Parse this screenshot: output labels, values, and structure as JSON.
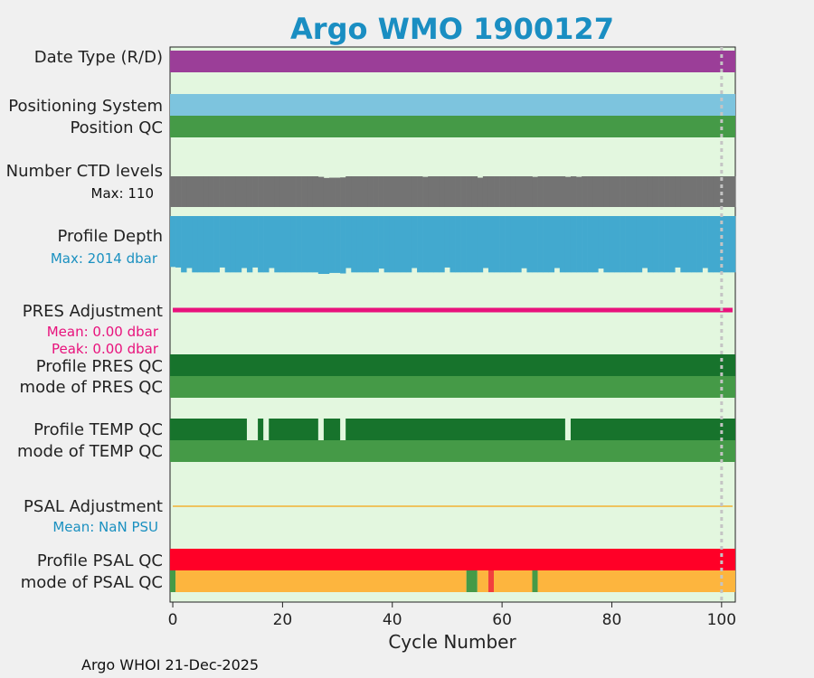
{
  "title": "Argo WMO 1900127",
  "footer": "Argo WHOI 21-Dec-2025",
  "chart_data": {
    "type": "bar",
    "title": "Argo WMO 1900127",
    "xlabel": "Cycle Number",
    "xlim": [
      -0.5,
      102.5
    ],
    "xticks": [
      0,
      20,
      40,
      60,
      80,
      100
    ],
    "reference_line_cycle": 100,
    "rows": [
      {
        "name": "date-type-row",
        "label": "Date Type (R/D)",
        "segments": [
          {
            "from": -0.5,
            "to": 102.5,
            "color": "#9b3e98"
          }
        ]
      },
      {
        "name": "positioning-system-row",
        "label": "Positioning System",
        "segments": [
          {
            "from": -0.5,
            "to": 102.5,
            "color": "#7dc4de"
          }
        ]
      },
      {
        "name": "position-qc-row",
        "label": "Position QC",
        "segments": [
          {
            "from": -0.5,
            "to": 102.5,
            "color": "#459a47"
          }
        ]
      },
      {
        "name": "pres-profile-qc-row",
        "label": "Profile PRES QC",
        "segments": [
          {
            "from": -0.5,
            "to": 102.5,
            "color": "#17732c"
          }
        ]
      },
      {
        "name": "pres-mode-qc-row",
        "label": "mode of PRES QC",
        "segments": [
          {
            "from": -0.5,
            "to": 102.5,
            "color": "#459a47"
          }
        ]
      },
      {
        "name": "temp-profile-qc-row",
        "label": "Profile TEMP QC",
        "segments": [
          {
            "from": -0.5,
            "to": 13.5,
            "color": "#17732c"
          },
          {
            "from": 15.5,
            "to": 16.5,
            "color": "#17732c"
          },
          {
            "from": 17.5,
            "to": 26.5,
            "color": "#17732c"
          },
          {
            "from": 27.5,
            "to": 30.5,
            "color": "#17732c"
          },
          {
            "from": 31.5,
            "to": 71.5,
            "color": "#17732c"
          },
          {
            "from": 72.5,
            "to": 102.5,
            "color": "#17732c"
          }
        ]
      },
      {
        "name": "temp-mode-qc-row",
        "label": "mode of TEMP QC",
        "segments": [
          {
            "from": -0.5,
            "to": 102.5,
            "color": "#459a47"
          }
        ]
      },
      {
        "name": "psal-profile-qc-row",
        "label": "Profile PSAL QC",
        "segments": [
          {
            "from": -0.5,
            "to": 102.5,
            "color": "#ff0027"
          }
        ]
      },
      {
        "name": "psal-mode-qc-row",
        "label": "mode of PSAL QC",
        "segments": [
          {
            "from": -0.5,
            "to": 0.5,
            "color": "#459a47"
          },
          {
            "from": 0.5,
            "to": 53.5,
            "color": "#fdb53e"
          },
          {
            "from": 53.5,
            "to": 55.5,
            "color": "#459a47"
          },
          {
            "from": 55.5,
            "to": 57.5,
            "color": "#fdb53e"
          },
          {
            "from": 57.5,
            "to": 58.5,
            "color": "#f23e3e"
          },
          {
            "from": 58.5,
            "to": 65.5,
            "color": "#fdb53e"
          },
          {
            "from": 65.5,
            "to": 66.5,
            "color": "#459a47"
          },
          {
            "from": 66.5,
            "to": 102.5,
            "color": "#fdb53e"
          }
        ]
      }
    ],
    "ctd_levels": {
      "label": "Number CTD levels",
      "max_label": "Max: 110",
      "max": 110,
      "color": "#737373",
      "typical": 110,
      "exceptions": [
        {
          "cycle": 27,
          "value": 108
        },
        {
          "cycle": 28,
          "value": 104
        },
        {
          "cycle": 29,
          "value": 105
        },
        {
          "cycle": 30,
          "value": 105
        },
        {
          "cycle": 31,
          "value": 106
        },
        {
          "cycle": 46,
          "value": 108
        },
        {
          "cycle": 56,
          "value": 105
        },
        {
          "cycle": 66,
          "value": 108
        },
        {
          "cycle": 72,
          "value": 108
        },
        {
          "cycle": 74,
          "value": 108
        }
      ]
    },
    "profile_depth": {
      "label": "Profile Depth",
      "max_label": "Max: 2014 dbar",
      "max": 2014,
      "color": "#42a9cf",
      "label_color": "#1a90c0",
      "typical": 2000,
      "exceptions": [
        {
          "cycle": 0,
          "value": 1950
        },
        {
          "cycle": 1,
          "value": 1955
        },
        {
          "cycle": 3,
          "value": 1960
        },
        {
          "cycle": 9,
          "value": 1955
        },
        {
          "cycle": 13,
          "value": 1960
        },
        {
          "cycle": 15,
          "value": 1955
        },
        {
          "cycle": 18,
          "value": 1960
        },
        {
          "cycle": 27,
          "value": 2014
        },
        {
          "cycle": 28,
          "value": 2014
        },
        {
          "cycle": 29,
          "value": 2005
        },
        {
          "cycle": 30,
          "value": 2005
        },
        {
          "cycle": 31,
          "value": 2010
        },
        {
          "cycle": 32,
          "value": 1960
        },
        {
          "cycle": 38,
          "value": 1965
        },
        {
          "cycle": 44,
          "value": 1960
        },
        {
          "cycle": 50,
          "value": 1955
        },
        {
          "cycle": 57,
          "value": 1960
        },
        {
          "cycle": 64,
          "value": 1962
        },
        {
          "cycle": 70,
          "value": 1960
        },
        {
          "cycle": 78,
          "value": 1965
        },
        {
          "cycle": 86,
          "value": 1960
        },
        {
          "cycle": 92,
          "value": 1955
        },
        {
          "cycle": 97,
          "value": 1960
        }
      ]
    },
    "pres_adjustment": {
      "label": "PRES Adjustment",
      "mean_label": "Mean: 0.00 dbar",
      "peak_label": "Peak: 0.00 dbar",
      "color": "#e8127c",
      "range": [
        0,
        102
      ]
    },
    "psal_adjustment": {
      "label": "PSAL Adjustment",
      "mean_label": "Mean:  NaN PSU",
      "color": "#f2b233",
      "label_color": "#1a90c0",
      "range": [
        0,
        102
      ]
    }
  }
}
